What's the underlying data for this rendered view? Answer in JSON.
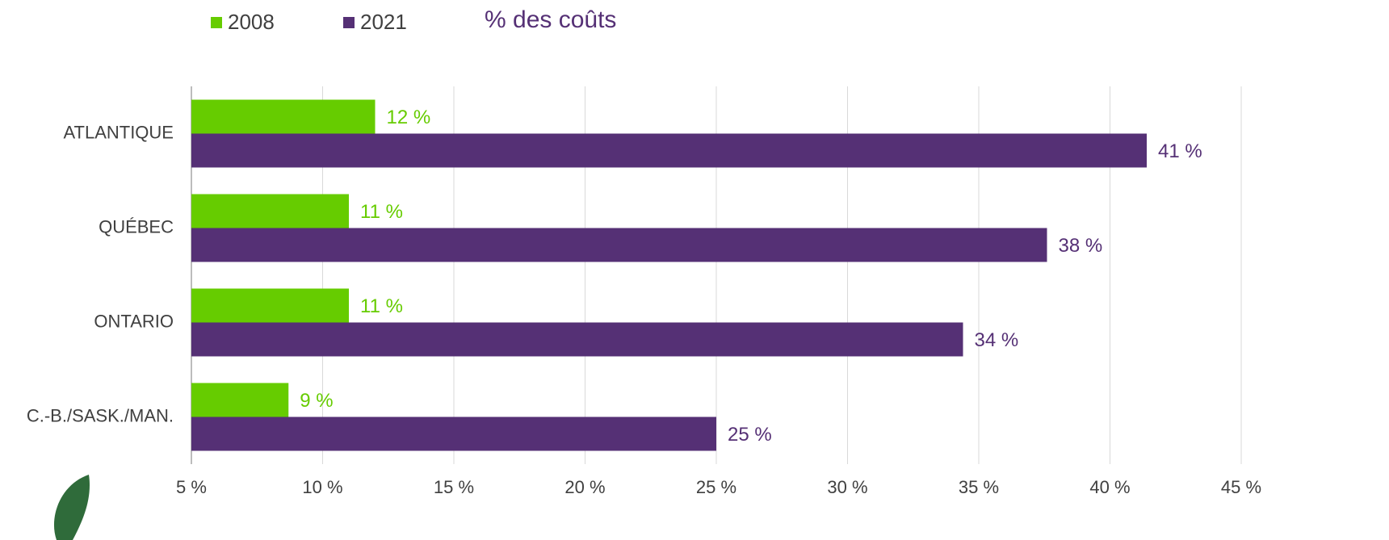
{
  "chart_data": {
    "type": "barh",
    "title": "% des coûts",
    "categories": [
      "ATLANTIQUE",
      "QUÉBEC",
      "ONTARIO",
      "C.-B./SASK./MAN."
    ],
    "series": [
      {
        "name": "2008",
        "color": "#66cc00",
        "values": [
          12.0,
          11.0,
          11.0,
          8.7
        ],
        "value_labels": [
          "12 %",
          "11 %",
          "11 %",
          "9 %"
        ]
      },
      {
        "name": "2021",
        "color": "#553075",
        "values": [
          41.4,
          37.6,
          34.4,
          25.0
        ],
        "value_labels": [
          "41 %",
          "38 %",
          "34 %",
          "25 %"
        ]
      }
    ],
    "xlim": [
      5,
      45
    ],
    "xticks": [
      {
        "value": 5,
        "label": "5 %"
      },
      {
        "value": 10,
        "label": "10 %"
      },
      {
        "value": 15,
        "label": "15 %"
      },
      {
        "value": 20,
        "label": "20 %"
      },
      {
        "value": 25,
        "label": "25 %"
      },
      {
        "value": 30,
        "label": "30 %"
      },
      {
        "value": 35,
        "label": "35 %"
      },
      {
        "value": 40,
        "label": "40 %"
      },
      {
        "value": 45,
        "label": "45 %"
      }
    ],
    "grid": true
  }
}
